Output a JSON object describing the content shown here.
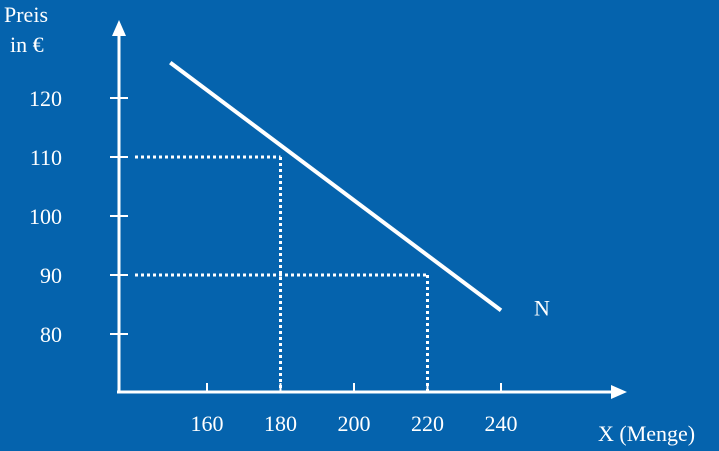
{
  "chart_data": {
    "type": "line",
    "title": "",
    "ylabel_lines": [
      "Preis",
      "in €"
    ],
    "xlabel": "X (Menge)",
    "x_ticks": [
      160,
      180,
      200,
      220,
      240
    ],
    "y_ticks": [
      80,
      90,
      100,
      110,
      120
    ],
    "series": [
      {
        "name": "N",
        "x": [
          150,
          240
        ],
        "y": [
          126,
          84
        ]
      }
    ],
    "reference_points": [
      {
        "x": 180,
        "y": 110
      },
      {
        "x": 220,
        "y": 90
      }
    ],
    "grid": false,
    "colors": {
      "background": "#0563ad",
      "foreground": "#ffffff"
    }
  }
}
